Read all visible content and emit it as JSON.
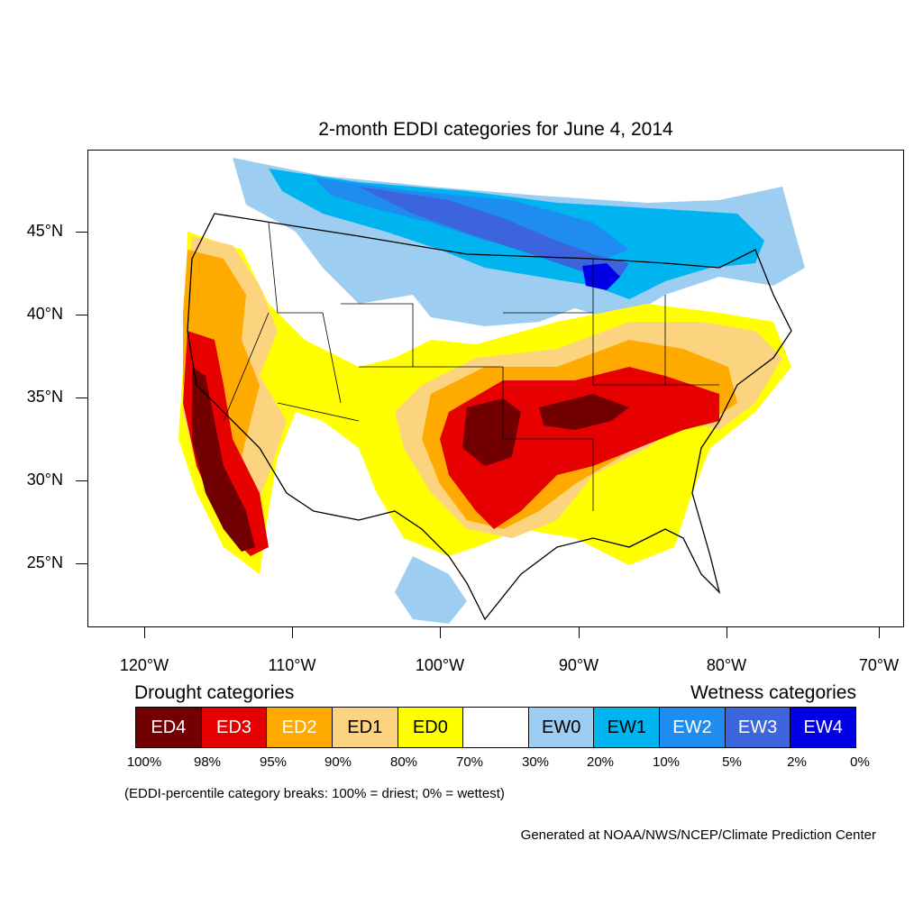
{
  "title": "2-month EDDI categories for June 4, 2014",
  "lat_labels": [
    "45°N",
    "40°N",
    "35°N",
    "30°N",
    "25°N"
  ],
  "lon_labels": [
    "120°W",
    "110°W",
    "100°W",
    "90°W",
    "80°W",
    "70°W"
  ],
  "legend": {
    "drought_heading": "Drought categories",
    "wetness_heading": "Wetness categories",
    "categories": [
      {
        "label": "ED4",
        "color": "#730000",
        "text_color": "#ffffff"
      },
      {
        "label": "ED3",
        "color": "#e60000",
        "text_color": "#ffffff"
      },
      {
        "label": "ED2",
        "color": "#ffaa00",
        "text_color": "#ffffff"
      },
      {
        "label": "ED1",
        "color": "#fcd37f",
        "text_color": "#000000"
      },
      {
        "label": "ED0",
        "color": "#ffff00",
        "text_color": "#000000"
      },
      {
        "label": "",
        "color": "#ffffff",
        "text_color": "#000000"
      },
      {
        "label": "EW0",
        "color": "#9dcdf0",
        "text_color": "#000000"
      },
      {
        "label": "EW1",
        "color": "#00b4f0",
        "text_color": "#000000"
      },
      {
        "label": "EW2",
        "color": "#1e8cf0",
        "text_color": "#ffffff"
      },
      {
        "label": "EW3",
        "color": "#3c64dc",
        "text_color": "#ffffff"
      },
      {
        "label": "EW4",
        "color": "#0000e6",
        "text_color": "#ffffff"
      }
    ],
    "breaks": [
      "100%",
      "98%",
      "95%",
      "90%",
      "80%",
      "70%",
      "30%",
      "20%",
      "10%",
      "5%",
      "2%",
      "0%"
    ],
    "note": "(EDDI-percentile category breaks: 100% = driest; 0% = wettest)"
  },
  "credit": "Generated at NOAA/NWS/NCEP/Climate Prediction Center"
}
